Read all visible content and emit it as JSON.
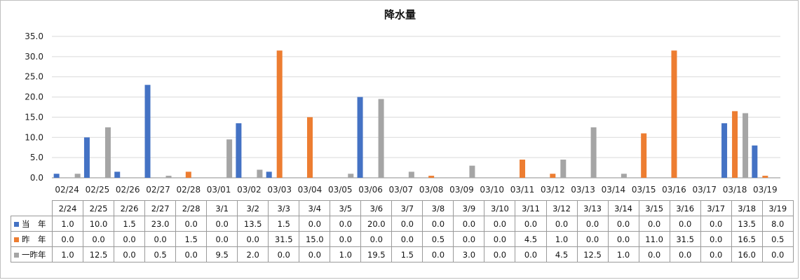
{
  "chart_data": {
    "type": "bar",
    "title": "降水量",
    "categories_axis": [
      "02/24",
      "02/25",
      "02/26",
      "02/27",
      "02/28",
      "03/01",
      "03/02",
      "03/03",
      "03/04",
      "03/05",
      "03/06",
      "03/07",
      "03/08",
      "03/09",
      "03/10",
      "03/11",
      "03/12",
      "03/13",
      "03/14",
      "03/15",
      "03/16",
      "03/17",
      "03/18",
      "03/19"
    ],
    "categories_table": [
      "2/24",
      "2/25",
      "2/26",
      "2/27",
      "2/28",
      "3/1",
      "3/2",
      "3/3",
      "3/4",
      "3/5",
      "3/6",
      "3/7",
      "3/8",
      "3/9",
      "3/10",
      "3/11",
      "3/12",
      "3/13",
      "3/14",
      "3/15",
      "3/16",
      "3/17",
      "3/18",
      "3/19"
    ],
    "y_ticks": [
      "0.0",
      "5.0",
      "10.0",
      "15.0",
      "20.0",
      "25.0",
      "30.0",
      "35.0"
    ],
    "ylim": [
      0,
      35
    ],
    "grid": true,
    "legend": "data-table",
    "series": [
      {
        "name": "当　年",
        "color": "#4472C4",
        "values": [
          1.0,
          10.0,
          1.5,
          23.0,
          0.0,
          0.0,
          13.5,
          1.5,
          0.0,
          0.0,
          20.0,
          0.0,
          0.0,
          0.0,
          0.0,
          0.0,
          0.0,
          0.0,
          0.0,
          0.0,
          0.0,
          0.0,
          13.5,
          8.0
        ],
        "labels": [
          "1.0",
          "10.0",
          "1.5",
          "23.0",
          "0.0",
          "0.0",
          "13.5",
          "1.5",
          "0.0",
          "0.0",
          "20.0",
          "0.0",
          "0.0",
          "0.0",
          "0.0",
          "0.0",
          "0.0",
          "0.0",
          "0.0",
          "0.0",
          "0.0",
          "0.0",
          "13.5",
          "8.0"
        ]
      },
      {
        "name": "昨　年",
        "color": "#ED7D31",
        "values": [
          0.0,
          0.0,
          0.0,
          0.0,
          1.5,
          0.0,
          0.0,
          31.5,
          15.0,
          0.0,
          0.0,
          0.0,
          0.5,
          0.0,
          0.0,
          4.5,
          1.0,
          0.0,
          0.0,
          11.0,
          31.5,
          0.0,
          16.5,
          0.5
        ],
        "labels": [
          "0.0",
          "0.0",
          "0.0",
          "0.0",
          "1.5",
          "0.0",
          "0.0",
          "31.5",
          "15.0",
          "0.0",
          "0.0",
          "0.0",
          "0.5",
          "0.0",
          "0.0",
          "4.5",
          "1.0",
          "0.0",
          "0.0",
          "11.0",
          "31.5",
          "0.0",
          "16.5",
          "0.5"
        ]
      },
      {
        "name": "一昨年",
        "color": "#A5A5A5",
        "values": [
          1.0,
          12.5,
          0.0,
          0.5,
          0.0,
          9.5,
          2.0,
          0.0,
          0.0,
          1.0,
          19.5,
          1.5,
          0.0,
          3.0,
          0.0,
          0.0,
          4.5,
          12.5,
          1.0,
          0.0,
          0.0,
          0.0,
          16.0,
          0.0
        ],
        "labels": [
          "1.0",
          "12.5",
          "0.0",
          "0.5",
          "0.0",
          "9.5",
          "2.0",
          "0.0",
          "0.0",
          "1.0",
          "19.5",
          "1.5",
          "0.0",
          "3.0",
          "0.0",
          "0.0",
          "4.5",
          "12.5",
          "1.0",
          "0.0",
          "0.0",
          "0.0",
          "16.0",
          "0.0"
        ]
      }
    ]
  }
}
